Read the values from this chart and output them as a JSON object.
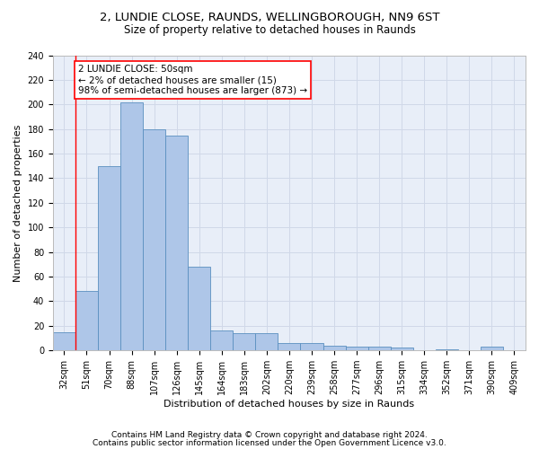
{
  "title1": "2, LUNDIE CLOSE, RAUNDS, WELLINGBOROUGH, NN9 6ST",
  "title2": "Size of property relative to detached houses in Raunds",
  "xlabel": "Distribution of detached houses by size in Raunds",
  "ylabel": "Number of detached properties",
  "categories": [
    "32sqm",
    "51sqm",
    "70sqm",
    "88sqm",
    "107sqm",
    "126sqm",
    "145sqm",
    "164sqm",
    "183sqm",
    "202sqm",
    "220sqm",
    "239sqm",
    "258sqm",
    "277sqm",
    "296sqm",
    "315sqm",
    "334sqm",
    "352sqm",
    "371sqm",
    "390sqm",
    "409sqm"
  ],
  "values": [
    15,
    48,
    150,
    202,
    180,
    175,
    68,
    16,
    14,
    14,
    6,
    6,
    4,
    3,
    3,
    2,
    0,
    1,
    0,
    3,
    0
  ],
  "bar_color": "#aec6e8",
  "bar_edge_color": "#5a8fc0",
  "red_line_x": 0.5,
  "annotation_text": "2 LUNDIE CLOSE: 50sqm\n← 2% of detached houses are smaller (15)\n98% of semi-detached houses are larger (873) →",
  "annotation_box_color": "white",
  "annotation_box_edge": "red",
  "footer1": "Contains HM Land Registry data © Crown copyright and database right 2024.",
  "footer2": "Contains public sector information licensed under the Open Government Licence v3.0.",
  "ylim": [
    0,
    240
  ],
  "yticks": [
    0,
    20,
    40,
    60,
    80,
    100,
    120,
    140,
    160,
    180,
    200,
    220,
    240
  ],
  "grid_color": "#d0d8e8",
  "bg_color": "#e8eef8",
  "title_fontsize": 9.5,
  "subtitle_fontsize": 8.5,
  "axis_label_fontsize": 8,
  "tick_fontsize": 7,
  "annotation_fontsize": 7.5,
  "footer_fontsize": 6.5
}
